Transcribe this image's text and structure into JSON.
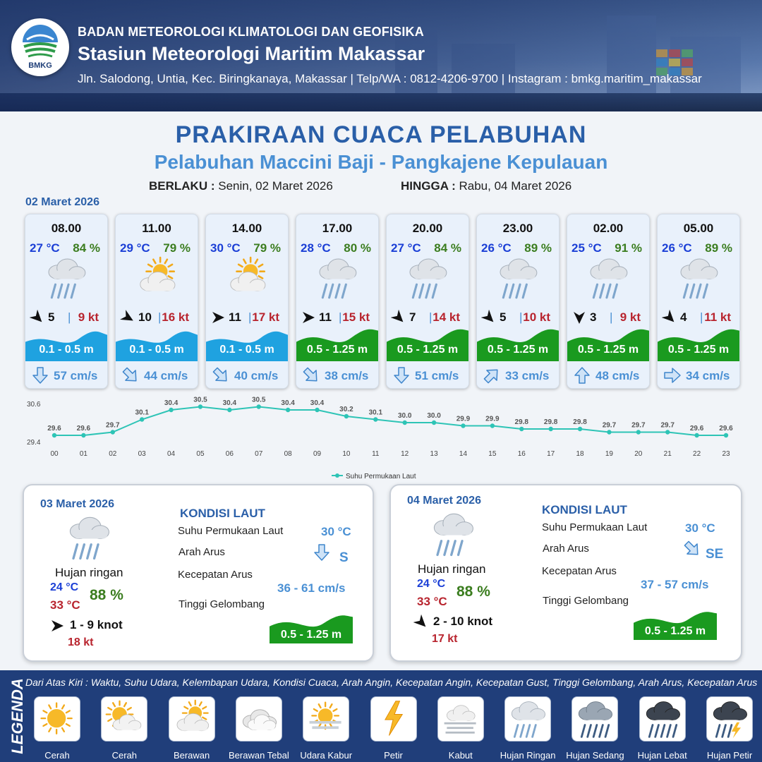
{
  "header": {
    "org": "BADAN METEOROLOGI KLIMATOLOGI DAN GEOFISIKA",
    "station": "Stasiun Meteorologi Maritim Makassar",
    "address": "Jln. Salodong, Untia, Kec. Biringkanaya, Makassar | Telp/WA : 0812-4206-9700 | Instagram : bmkg.maritim_makassar",
    "logo_text": "BMKG"
  },
  "title": "PRAKIRAAN CUACA PELABUHAN",
  "subtitle": "Pelabuhan Maccini Baji - Pangkajene Kepulauan",
  "validity": {
    "from_label": "BERLAKU :",
    "from_value": "Senin, 02 Maret 2026",
    "to_label": "HINGGA :",
    "to_value": "Rabu, 04 Maret 2026"
  },
  "day1_label": "02 Maret 2026",
  "forecasts": [
    {
      "time": "08.00",
      "temp": "27 °C",
      "rh": "84 %",
      "icon": "light-rain-icon",
      "wind_dir_deg": 135,
      "wind": "5",
      "gust": "9 kt",
      "wave": "0.1 - 0.5 m",
      "wave_level": "low",
      "current_dir_deg": 180,
      "current": "57 cm/s"
    },
    {
      "time": "11.00",
      "temp": "29 °C",
      "rh": "79 %",
      "icon": "partly-cloudy-icon",
      "wind_dir_deg": 120,
      "wind": "10",
      "gust": "16 kt",
      "wave": "0.1 - 0.5 m",
      "wave_level": "low",
      "current_dir_deg": 135,
      "current": "44 cm/s"
    },
    {
      "time": "14.00",
      "temp": "30 °C",
      "rh": "79 %",
      "icon": "partly-cloudy-icon",
      "wind_dir_deg": 90,
      "wind": "11",
      "gust": "17 kt",
      "wave": "0.1 - 0.5 m",
      "wave_level": "low",
      "current_dir_deg": 135,
      "current": "40 cm/s"
    },
    {
      "time": "17.00",
      "temp": "28 °C",
      "rh": "80 %",
      "icon": "light-rain-icon",
      "wind_dir_deg": 90,
      "wind": "11",
      "gust": "15 kt",
      "wave": "0.5 - 1.25 m",
      "wave_level": "moderate",
      "current_dir_deg": 135,
      "current": "38 cm/s"
    },
    {
      "time": "20.00",
      "temp": "27 °C",
      "rh": "84 %",
      "icon": "light-rain-icon",
      "wind_dir_deg": 135,
      "wind": "7",
      "gust": "14 kt",
      "wave": "0.5 - 1.25 m",
      "wave_level": "moderate",
      "current_dir_deg": 180,
      "current": "51 cm/s"
    },
    {
      "time": "23.00",
      "temp": "26 °C",
      "rh": "89 %",
      "icon": "light-rain-icon",
      "wind_dir_deg": 135,
      "wind": "5",
      "gust": "10 kt",
      "wave": "0.5 - 1.25 m",
      "wave_level": "moderate",
      "current_dir_deg": 45,
      "current": "33 cm/s"
    },
    {
      "time": "02.00",
      "temp": "25 °C",
      "rh": "91 %",
      "icon": "light-rain-icon",
      "wind_dir_deg": 180,
      "wind": "3",
      "gust": "9 kt",
      "wave": "0.5 - 1.25 m",
      "wave_level": "moderate",
      "current_dir_deg": 0,
      "current": "48 cm/s"
    },
    {
      "time": "05.00",
      "temp": "26 °C",
      "rh": "89 %",
      "icon": "light-rain-icon",
      "wind_dir_deg": 135,
      "wind": "4",
      "gust": "11 kt",
      "wave": "0.5 - 1.25 m",
      "wave_level": "moderate",
      "current_dir_deg": 90,
      "current": "34 cm/s"
    }
  ],
  "chart_data": {
    "type": "line",
    "categories": [
      "00",
      "01",
      "02",
      "03",
      "04",
      "05",
      "06",
      "07",
      "08",
      "09",
      "10",
      "11",
      "12",
      "13",
      "14",
      "15",
      "16",
      "17",
      "18",
      "19",
      "20",
      "21",
      "22",
      "23"
    ],
    "series": [
      {
        "name": "Suhu Permukaan Laut",
        "values": [
          29.6,
          29.6,
          29.7,
          30.1,
          30.4,
          30.5,
          30.4,
          30.5,
          30.4,
          30.4,
          30.2,
          30.1,
          30.0,
          30.0,
          29.9,
          29.9,
          29.8,
          29.8,
          29.8,
          29.7,
          29.7,
          29.7,
          29.6,
          29.6
        ],
        "color": "#2ec4b6"
      }
    ],
    "ylim": [
      29.4,
      30.6
    ],
    "yticks": [
      "29.4",
      "30.6"
    ],
    "legend": "bottom-center",
    "grid": false
  },
  "days": [
    {
      "date": "03 Maret 2026",
      "condition": "Hujan ringan",
      "icon": "light-rain-icon",
      "tmin": "24 °C",
      "tmax": "33 °C",
      "rh": "88 %",
      "wind_dir_deg": 90,
      "wind": "1 - 9 knot",
      "gust": "18 kt",
      "sea_heading": "KONDISI LAUT",
      "sst_label": "Suhu Permukaan Laut",
      "sst": "30 °C",
      "cur_dir_label": "Arah Arus",
      "cur_dir": "S",
      "cur_dir_deg": 180,
      "cur_spd_label": "Kecepatan Arus",
      "cur_spd": "36 - 61 cm/s",
      "wave_label": "Tinggi Gelombang",
      "wave": "0.5 - 1.25 m"
    },
    {
      "date": "04 Maret 2026",
      "condition": "Hujan ringan",
      "icon": "light-rain-icon",
      "tmin": "24 °C",
      "tmax": "33 °C",
      "rh": "88 %",
      "wind_dir_deg": 135,
      "wind": "2 - 10 knot",
      "gust": "17 kt",
      "sea_heading": "KONDISI LAUT",
      "sst_label": "Suhu Permukaan Laut",
      "sst": "30 °C",
      "cur_dir_label": "Arah Arus",
      "cur_dir": "SE",
      "cur_dir_deg": 135,
      "cur_spd_label": "Kecepatan Arus",
      "cur_spd": "37 - 57 cm/s",
      "wave_label": "Tinggi Gelombang",
      "wave": "0.5 - 1.25 m"
    }
  ],
  "legend": {
    "title": "LEGENDA",
    "description": "Dari Atas Kiri : Waktu, Suhu Udara, Kelembapan Udara, Kondisi Cuaca, Arah Angin, Kecepatan Angin, Kecepatan Gust, Tinggi Gelombang, Arah Arus, Kecepatan Arus",
    "items": [
      {
        "name": "Cerah",
        "icon": "sunny-icon"
      },
      {
        "name": "Cerah Berawan",
        "icon": "mostly-sunny-icon"
      },
      {
        "name": "Berawan",
        "icon": "partly-cloudy-icon"
      },
      {
        "name": "Berawan Tebal",
        "icon": "overcast-icon"
      },
      {
        "name": "Udara Kabur",
        "icon": "haze-icon"
      },
      {
        "name": "Petir",
        "icon": "lightning-icon"
      },
      {
        "name": "Kabut",
        "icon": "fog-icon"
      },
      {
        "name": "Hujan Ringan",
        "icon": "light-rain-icon"
      },
      {
        "name": "Hujan Sedang",
        "icon": "moderate-rain-icon"
      },
      {
        "name": "Hujan Lebat",
        "icon": "heavy-rain-icon"
      },
      {
        "name": "Hujan Petir",
        "icon": "thunderstorm-icon"
      }
    ]
  },
  "colors": {
    "title": "#2a5fa8",
    "subtitle": "#4a90d4",
    "wave_low": "#1fa2e0",
    "wave_moderate": "#1a9a1f",
    "temp": "#1b3fd6",
    "rh": "#3b7d1f",
    "gust": "#b8242e",
    "current": "#4a90d4",
    "legend_bg": "#203e7a"
  }
}
